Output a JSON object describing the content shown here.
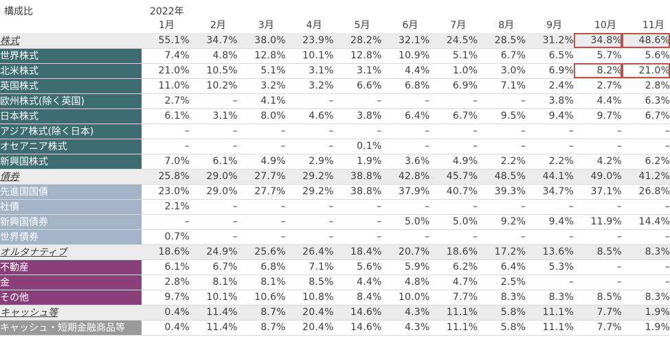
{
  "header": {
    "title": "構成比",
    "year": "2022年",
    "months": [
      "1月",
      "2月",
      "3月",
      "4月",
      "5月",
      "6月",
      "7月",
      "8月",
      "9月",
      "10月",
      "11月"
    ]
  },
  "colors": {
    "equity_label_bg": "#3d6d73",
    "bond_label_bg": "#a3b4c8",
    "alternative_label_bg": "#8b3f7a",
    "cash_label_bg": "#9a9a9a",
    "category_row_bg": "#ececec",
    "highlight_border": "#c0504d"
  },
  "rows": [
    {
      "type": "category",
      "group": "eq",
      "label": "株式",
      "values": [
        "55.1%",
        "34.7%",
        "38.0%",
        "23.9%",
        "28.2%",
        "32.1%",
        "24.5%",
        "28.5%",
        "31.2%",
        "34.8%",
        "48.6%"
      ],
      "highlight": true
    },
    {
      "type": "sub",
      "group": "eq",
      "label": "世界株式",
      "values": [
        "7.4%",
        "4.8%",
        "12.8%",
        "10.1%",
        "12.8%",
        "10.9%",
        "5.1%",
        "6.7%",
        "6.5%",
        "5.7%",
        "5.6%"
      ]
    },
    {
      "type": "sub",
      "group": "eq",
      "label": "北米株式",
      "values": [
        "21.0%",
        "10.5%",
        "5.1%",
        "3.1%",
        "3.1%",
        "4.4%",
        "1.0%",
        "3.0%",
        "6.9%",
        "8.2%",
        "21.0%"
      ],
      "highlight": true
    },
    {
      "type": "sub",
      "group": "eq",
      "label": "英国株式",
      "values": [
        "11.0%",
        "10.2%",
        "3.2%",
        "3.2%",
        "6.6%",
        "6.8%",
        "6.9%",
        "7.1%",
        "2.4%",
        "2.7%",
        "2.8%"
      ]
    },
    {
      "type": "sub",
      "group": "eq",
      "label": "欧州株式(除く英国)",
      "values": [
        "2.7%",
        "–",
        "4.1%",
        "–",
        "–",
        "–",
        "–",
        "–",
        "3.8%",
        "4.4%",
        "6.3%"
      ]
    },
    {
      "type": "sub",
      "group": "eq",
      "label": "日本株式",
      "values": [
        "6.1%",
        "3.1%",
        "8.0%",
        "4.6%",
        "3.8%",
        "6.4%",
        "6.7%",
        "9.5%",
        "9.4%",
        "9.7%",
        "6.7%"
      ]
    },
    {
      "type": "sub",
      "group": "eq",
      "label": "アジア株式(除く日本)",
      "values": [
        "–",
        "–",
        "–",
        "–",
        "–",
        "–",
        "–",
        "–",
        "–",
        "–",
        "–"
      ]
    },
    {
      "type": "sub",
      "group": "eq",
      "label": "オセアニア株式",
      "values": [
        "–",
        "–",
        "–",
        "–",
        "0.1%",
        "–",
        "–",
        "–",
        "–",
        "–",
        "–"
      ]
    },
    {
      "type": "sub",
      "group": "eq",
      "label": "新興国株式",
      "values": [
        "7.0%",
        "6.1%",
        "4.9%",
        "2.9%",
        "1.9%",
        "3.6%",
        "4.9%",
        "2.2%",
        "2.2%",
        "4.2%",
        "6.2%"
      ]
    },
    {
      "type": "category",
      "group": "bd",
      "label": "債券",
      "values": [
        "25.8%",
        "29.0%",
        "27.7%",
        "29.2%",
        "38.8%",
        "42.8%",
        "45.7%",
        "48.5%",
        "44.1%",
        "49.0%",
        "41.2%"
      ]
    },
    {
      "type": "sub",
      "group": "bd",
      "label": "先進国国債",
      "values": [
        "23.0%",
        "29.0%",
        "27.7%",
        "29.2%",
        "38.8%",
        "37.9%",
        "40.7%",
        "39.3%",
        "34.7%",
        "37.1%",
        "26.8%"
      ]
    },
    {
      "type": "sub",
      "group": "bd",
      "label": "社債",
      "values": [
        "2.1%",
        "–",
        "–",
        "–",
        "–",
        "–",
        "–",
        "–",
        "–",
        "–",
        "–"
      ]
    },
    {
      "type": "sub",
      "group": "bd",
      "label": "新興国債券",
      "values": [
        "–",
        "–",
        "–",
        "–",
        "–",
        "5.0%",
        "5.0%",
        "9.2%",
        "9.4%",
        "11.9%",
        "14.4%"
      ]
    },
    {
      "type": "sub",
      "group": "bd",
      "label": "世界債券",
      "values": [
        "0.7%",
        "–",
        "–",
        "–",
        "–",
        "–",
        "–",
        "–",
        "–",
        "–",
        "–"
      ]
    },
    {
      "type": "category",
      "group": "alt",
      "label": "オルタナティブ",
      "values": [
        "18.6%",
        "24.9%",
        "25.6%",
        "26.4%",
        "18.4%",
        "20.7%",
        "18.6%",
        "17.2%",
        "13.6%",
        "8.5%",
        "8.3%"
      ]
    },
    {
      "type": "sub",
      "group": "alt",
      "label": "不動産",
      "values": [
        "6.1%",
        "6.7%",
        "6.8%",
        "7.1%",
        "5.6%",
        "5.9%",
        "6.2%",
        "6.4%",
        "5.3%",
        "–",
        "–"
      ]
    },
    {
      "type": "sub",
      "group": "alt",
      "label": "金",
      "values": [
        "2.8%",
        "8.1%",
        "8.1%",
        "8.5%",
        "4.4%",
        "4.8%",
        "4.7%",
        "2.5%",
        "–",
        "–",
        "–"
      ]
    },
    {
      "type": "sub",
      "group": "alt",
      "label": "その他",
      "values": [
        "9.7%",
        "10.1%",
        "10.6%",
        "10.8%",
        "8.4%",
        "10.0%",
        "7.7%",
        "8.3%",
        "8.3%",
        "8.5%",
        "8.3%"
      ]
    },
    {
      "type": "category",
      "group": "cash",
      "label": "キャッシュ等",
      "values": [
        "0.4%",
        "11.4%",
        "8.7%",
        "20.4%",
        "14.6%",
        "4.3%",
        "11.1%",
        "5.8%",
        "11.1%",
        "7.7%",
        "1.9%"
      ]
    },
    {
      "type": "sub",
      "group": "cash",
      "label": "キャッシュ・短期金融商品等",
      "values": [
        "0.4%",
        "11.4%",
        "8.7%",
        "20.4%",
        "14.6%",
        "4.3%",
        "11.1%",
        "5.8%",
        "11.1%",
        "7.7%",
        "1.9%"
      ]
    }
  ]
}
